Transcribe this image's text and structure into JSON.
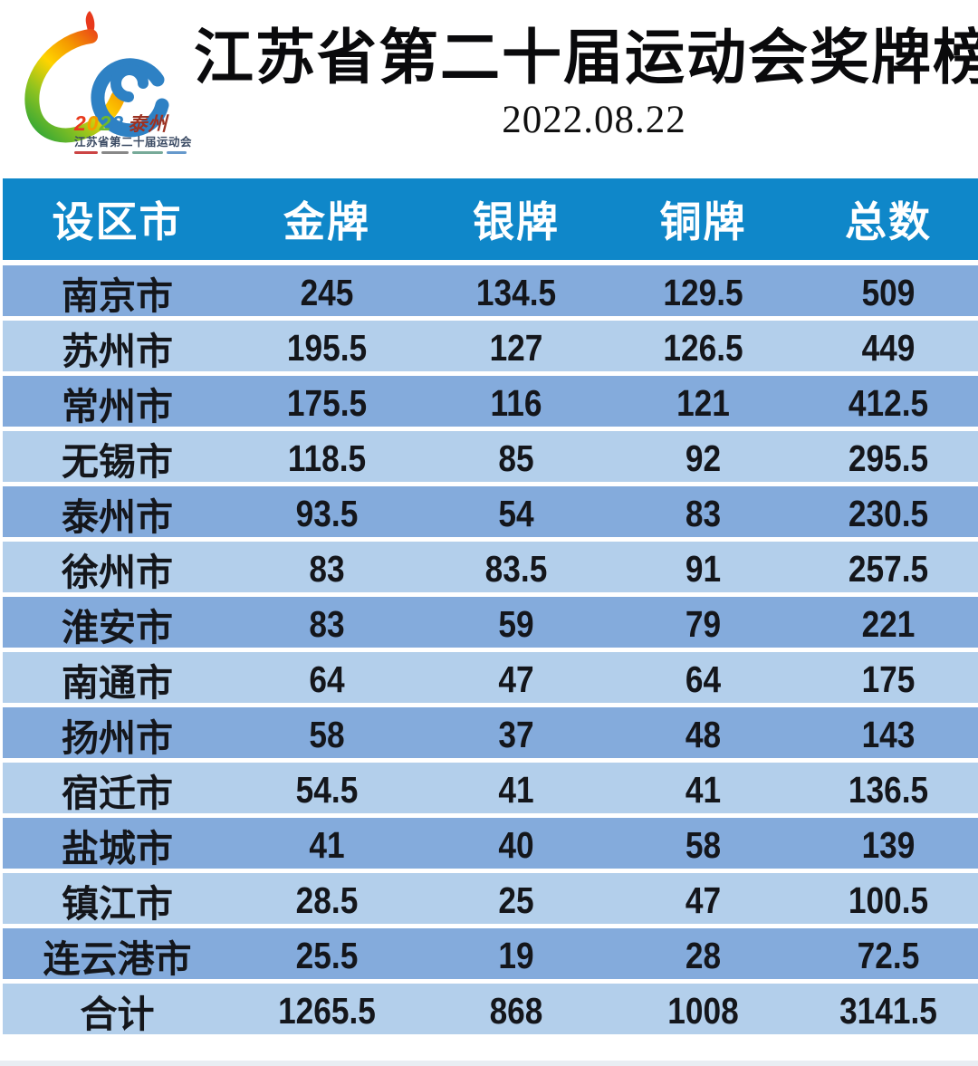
{
  "header": {
    "title": "江苏省第二十届运动会奖牌榜",
    "date": "2022.08.22",
    "logo": {
      "year_digits": [
        "2",
        "0",
        "2",
        "2"
      ],
      "host_city": "泰州",
      "subtitle": "江苏省第二十届运动会"
    }
  },
  "colors": {
    "table_header_bg": "#0f87c9",
    "row_dark": "#84abdc",
    "row_light": "#b3cfeb",
    "header_text": "#ffffff",
    "cell_text": "#14161b",
    "logo_red": "#e8391c",
    "logo_orange": "#f59b00",
    "logo_yellow": "#ffd400",
    "logo_green": "#6fb92c",
    "logo_blue": "#2e81c4"
  },
  "chart_data": {
    "type": "table",
    "title": "江苏省第二十届运动会奖牌榜",
    "subtitle": "2022.08.22",
    "columns": [
      "设区市",
      "金牌",
      "银牌",
      "铜牌",
      "总数"
    ],
    "rows": [
      [
        "南京市",
        245,
        134.5,
        129.5,
        509
      ],
      [
        "苏州市",
        195.5,
        127,
        126.5,
        449
      ],
      [
        "常州市",
        175.5,
        116,
        121,
        412.5
      ],
      [
        "无锡市",
        118.5,
        85,
        92,
        295.5
      ],
      [
        "泰州市",
        93.5,
        54,
        83,
        230.5
      ],
      [
        "徐州市",
        83,
        83.5,
        91,
        257.5
      ],
      [
        "淮安市",
        83,
        59,
        79,
        221
      ],
      [
        "南通市",
        64,
        47,
        64,
        175
      ],
      [
        "扬州市",
        58,
        37,
        48,
        143
      ],
      [
        "宿迁市",
        54.5,
        41,
        41,
        136.5
      ],
      [
        "盐城市",
        41,
        40,
        58,
        139
      ],
      [
        "镇江市",
        28.5,
        25,
        47,
        100.5
      ],
      [
        "连云港市",
        25.5,
        19,
        28,
        72.5
      ],
      [
        "合计",
        1265.5,
        868,
        1008,
        3141.5
      ]
    ]
  }
}
